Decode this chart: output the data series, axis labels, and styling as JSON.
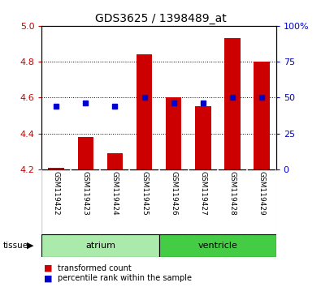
{
  "title": "GDS3625 / 1398489_at",
  "samples": [
    "GSM119422",
    "GSM119423",
    "GSM119424",
    "GSM119425",
    "GSM119426",
    "GSM119427",
    "GSM119428",
    "GSM119429"
  ],
  "transformed_count": [
    4.21,
    4.38,
    4.29,
    4.84,
    4.6,
    4.55,
    4.93,
    4.8
  ],
  "percentile_rank": [
    44,
    46,
    44,
    50,
    46,
    46,
    50,
    50
  ],
  "bar_bottom": 4.2,
  "ylim_left": [
    4.2,
    5.0
  ],
  "ylim_right": [
    0,
    100
  ],
  "yticks_left": [
    4.2,
    4.4,
    4.6,
    4.8,
    5.0
  ],
  "yticks_right": [
    0,
    25,
    50,
    75,
    100
  ],
  "bar_color": "#cc0000",
  "dot_color": "#0000cc",
  "tissue_groups": [
    {
      "label": "atrium",
      "samples": [
        0,
        1,
        2,
        3
      ],
      "color": "#aaeaaa"
    },
    {
      "label": "ventricle",
      "samples": [
        4,
        5,
        6,
        7
      ],
      "color": "#44cc44"
    }
  ],
  "background_color": "#ffffff",
  "plot_bg": "#ffffff",
  "tick_label_color_left": "#cc0000",
  "tick_label_color_right": "#0000cc",
  "legend_items": [
    {
      "label": "transformed count",
      "color": "#cc0000"
    },
    {
      "label": "percentile rank within the sample",
      "color": "#0000cc"
    }
  ],
  "gridlines": [
    4.4,
    4.6,
    4.8
  ],
  "sample_box_color": "#cccccc",
  "sample_box_edge": "#888888"
}
